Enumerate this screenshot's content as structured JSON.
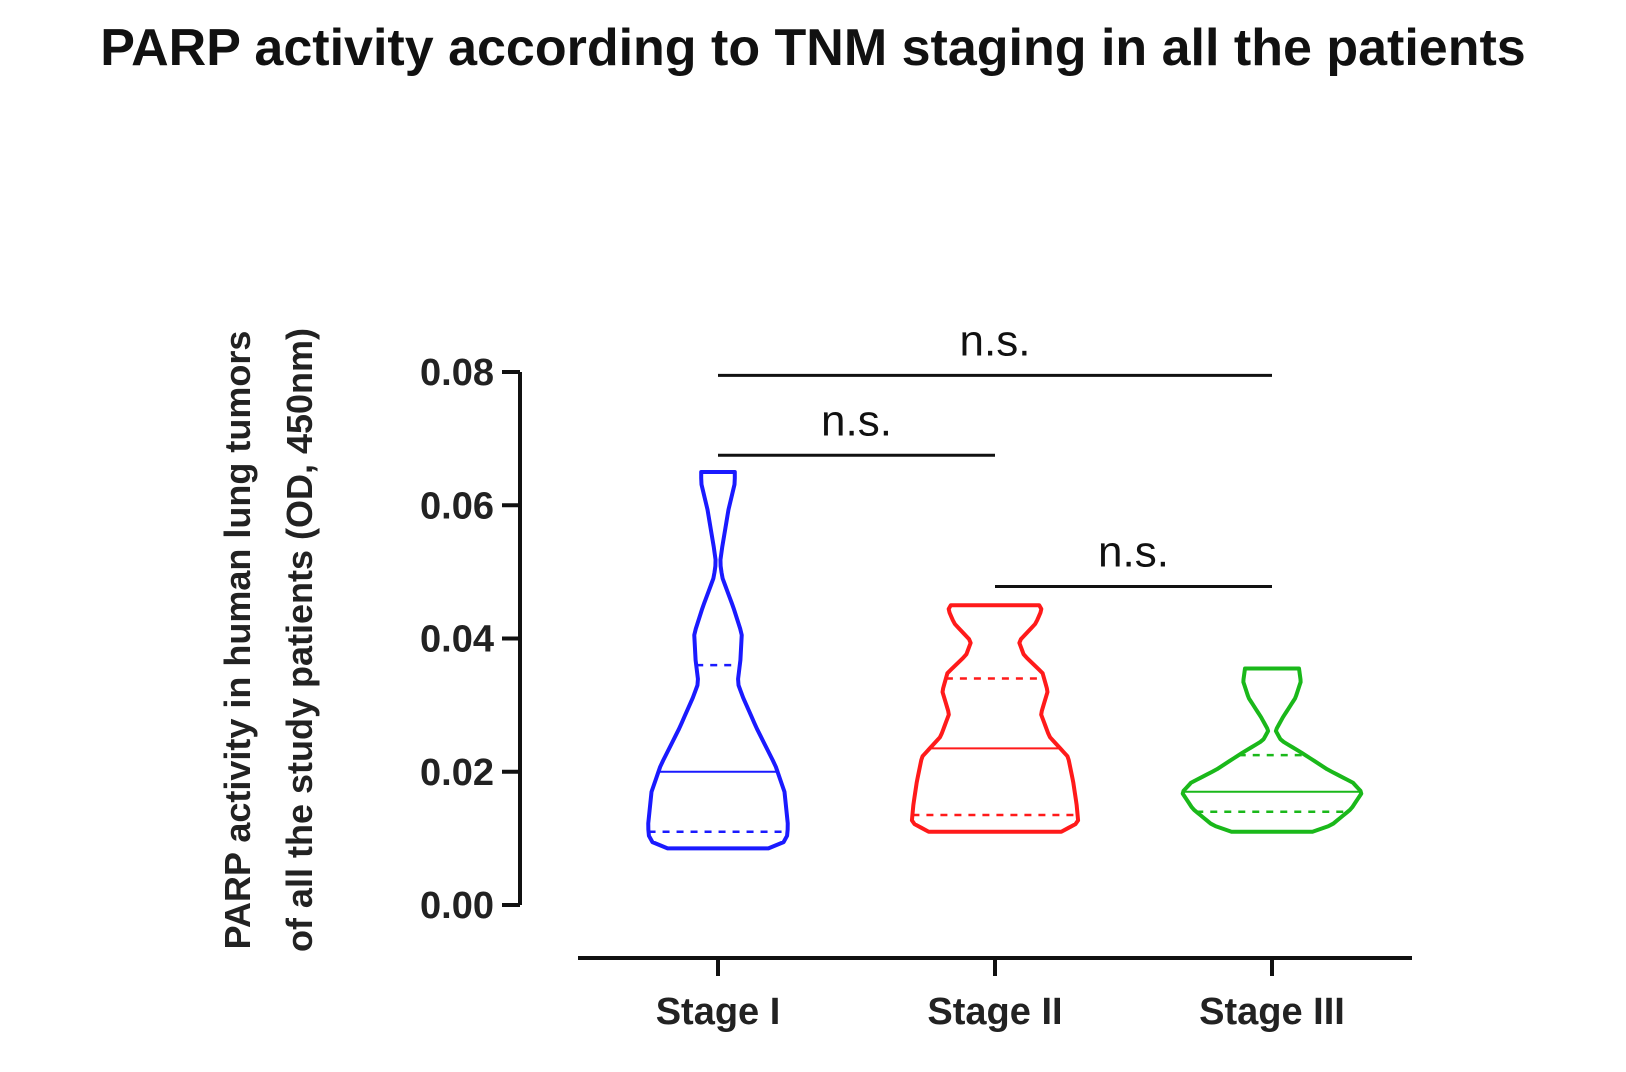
{
  "title": "PARP activity according to TNM staging in all the patients",
  "chart_data": {
    "type": "violin",
    "ylabel_lines": [
      "PARP activity in human lung tumors",
      "of all the study patients (OD, 450nm)"
    ],
    "ylim": [
      0,
      0.08
    ],
    "yticks": [
      "0.00",
      "0.02",
      "0.04",
      "0.06",
      "0.08"
    ],
    "categories": [
      "Stage I",
      "Stage II",
      "Stage III"
    ],
    "series": [
      {
        "category": "Stage I",
        "color": "#1a1aff",
        "min": 0.0085,
        "max": 0.065,
        "median": 0.02,
        "q1": 0.011,
        "q3": 0.036
      },
      {
        "category": "Stage II",
        "color": "#ff1a1a",
        "min": 0.011,
        "max": 0.045,
        "median": 0.0235,
        "q1": 0.0135,
        "q3": 0.034
      },
      {
        "category": "Stage III",
        "color": "#1ab81a",
        "min": 0.011,
        "max": 0.0355,
        "median": 0.017,
        "q1": 0.014,
        "q3": 0.0225
      }
    ],
    "comparisons": [
      {
        "from": "Stage I",
        "to": "Stage III",
        "label": "n.s.",
        "y": 0.0795
      },
      {
        "from": "Stage I",
        "to": "Stage II",
        "label": "n.s.",
        "y": 0.0675
      },
      {
        "from": "Stage II",
        "to": "Stage III",
        "label": "n.s.",
        "y": 0.0478
      }
    ]
  }
}
